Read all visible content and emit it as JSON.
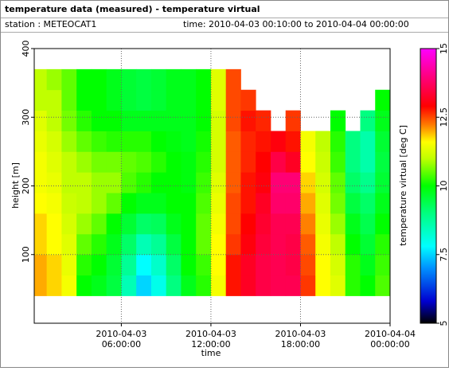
{
  "chart_data": {
    "type": "heatmap",
    "title": "temperature data (measured) - temperature virtual",
    "station": "station : METEOCAT1",
    "time_range": "time: 2010-04-03 00:10:00 to 2010-04-04 00:00:00",
    "xlabel": "time",
    "ylabel": "height [m]",
    "colorbar_label": "temperature virtual [deg C]",
    "xlim": [
      "2010-04-03 00:10:00",
      "2010-04-04 00:00:00"
    ],
    "xticks": [
      "2010-04-03 06:00:00",
      "2010-04-03 12:00:00",
      "2010-04-03 18:00:00",
      "2010-04-04 00:00:00"
    ],
    "ylim": [
      0,
      400
    ],
    "yticks": [
      100,
      200,
      300,
      400
    ],
    "clim": [
      5,
      15
    ],
    "cticks": [
      5,
      7.5,
      10,
      12.5,
      15
    ],
    "grid": true,
    "colormap": [
      [
        5,
        "#000000"
      ],
      [
        5.8,
        "#0000d0"
      ],
      [
        7,
        "#0090ff"
      ],
      [
        7.8,
        "#00ffff"
      ],
      [
        9,
        "#00ff80"
      ],
      [
        10,
        "#00ff00"
      ],
      [
        11,
        "#c0ff00"
      ],
      [
        11.6,
        "#ffff00"
      ],
      [
        12.2,
        "#ff8000"
      ],
      [
        12.9,
        "#ff0000"
      ],
      [
        14,
        "#ff0080"
      ],
      [
        15,
        "#ff00ff"
      ]
    ],
    "x_edges": [
      "2010-04-03 00:10:00",
      "2010-04-03 01:00:00",
      "2010-04-03 02:00:00",
      "2010-04-03 03:00:00",
      "2010-04-03 04:00:00",
      "2010-04-03 05:00:00",
      "2010-04-03 06:00:00",
      "2010-04-03 07:00:00",
      "2010-04-03 08:00:00",
      "2010-04-03 09:00:00",
      "2010-04-03 10:00:00",
      "2010-04-03 11:00:00",
      "2010-04-03 12:00:00",
      "2010-04-03 13:00:00",
      "2010-04-03 14:00:00",
      "2010-04-03 15:00:00",
      "2010-04-03 16:00:00",
      "2010-04-03 17:00:00",
      "2010-04-03 18:00:00",
      "2010-04-03 19:00:00",
      "2010-04-03 20:00:00",
      "2010-04-03 21:00:00",
      "2010-04-03 22:00:00",
      "2010-04-03 23:00:00",
      "2010-04-04 00:00:00"
    ],
    "y_edges": [
      40,
      70,
      100,
      130,
      160,
      190,
      220,
      250,
      280,
      310,
      340,
      370
    ],
    "z": [
      [
        12,
        12,
        11.8,
        11.8,
        11.6,
        11.5,
        11.5,
        11.4,
        11.3,
        11,
        11
      ],
      [
        11.8,
        11.8,
        11.6,
        11.6,
        11.5,
        11.4,
        11.3,
        11.2,
        11,
        11,
        10.8
      ],
      [
        11.5,
        11.4,
        11.3,
        11.2,
        11.1,
        11,
        11,
        10.8,
        10.6,
        10.5,
        10.5
      ],
      [
        10,
        10.2,
        10.5,
        10.8,
        11,
        11,
        10.8,
        10.5,
        10.2,
        10,
        10
      ],
      [
        9.8,
        10,
        10.2,
        10.5,
        10.8,
        10.8,
        10.6,
        10.3,
        10,
        10,
        10
      ],
      [
        9.5,
        9.6,
        9.8,
        10,
        10.5,
        10.8,
        10.6,
        10.2,
        10,
        9.8,
        9.8
      ],
      [
        8.5,
        8.8,
        9.2,
        9.6,
        10,
        10.4,
        10.5,
        10.2,
        9.8,
        9.6,
        9.6
      ],
      [
        7.5,
        7.8,
        8.5,
        9.2,
        9.8,
        10.2,
        10.4,
        10.2,
        9.8,
        9.5,
        9.5
      ],
      [
        8,
        8.3,
        8.8,
        9.3,
        9.8,
        10,
        10.2,
        10,
        9.8,
        9.6,
        9.6
      ],
      [
        9,
        9.2,
        9.5,
        9.8,
        10,
        10,
        10,
        9.9,
        9.8,
        9.8,
        9.8
      ],
      [
        9.8,
        10,
        10,
        10,
        10,
        9.9,
        9.9,
        9.8,
        9.8,
        9.8,
        9.8
      ],
      [
        10.2,
        10.3,
        10.5,
        10.5,
        10.4,
        10.3,
        10.2,
        10.1,
        10,
        10,
        10
      ],
      [
        11.5,
        11.6,
        11.6,
        11.5,
        11.4,
        11.3,
        11.2,
        11.2,
        11.2,
        11.3,
        11.3
      ],
      [
        12.8,
        12.8,
        12.6,
        12.5,
        12.5,
        12.4,
        12.4,
        12.4,
        12.5,
        12.5,
        12.5
      ],
      [
        13.2,
        13.2,
        13,
        12.9,
        12.8,
        12.8,
        12.7,
        12.7,
        12.8,
        12.6,
        null
      ],
      [
        13.5,
        13.5,
        13.4,
        13.3,
        13.2,
        13,
        12.9,
        12.8,
        12.7,
        null,
        null
      ],
      [
        13.6,
        13.6,
        13.6,
        13.6,
        13.8,
        13.9,
        13.5,
        13,
        null,
        null,
        null
      ],
      [
        13.6,
        13.5,
        13.5,
        13.6,
        13.8,
        13.9,
        13.2,
        12.8,
        12.6,
        null,
        null
      ],
      [
        12.6,
        12.5,
        12.4,
        12.2,
        12,
        11.8,
        11.6,
        11.5,
        null,
        null,
        null
      ],
      [
        11.6,
        11.6,
        11.5,
        11.4,
        11.3,
        11.2,
        11.1,
        11,
        null,
        null,
        null
      ],
      [
        11.3,
        11.2,
        11,
        10.8,
        10.6,
        10.5,
        10.3,
        10.2,
        10,
        null,
        null
      ],
      [
        10.2,
        10.2,
        10,
        9.8,
        9.5,
        9.2,
        9,
        9,
        null,
        null,
        null
      ],
      [
        10,
        9.8,
        9.6,
        9.4,
        9.2,
        8.9,
        8.6,
        8.6,
        9,
        null,
        null
      ],
      [
        10.4,
        10.3,
        10.2,
        10,
        9.8,
        9.6,
        9.5,
        9.6,
        9.8,
        10,
        null
      ]
    ]
  }
}
